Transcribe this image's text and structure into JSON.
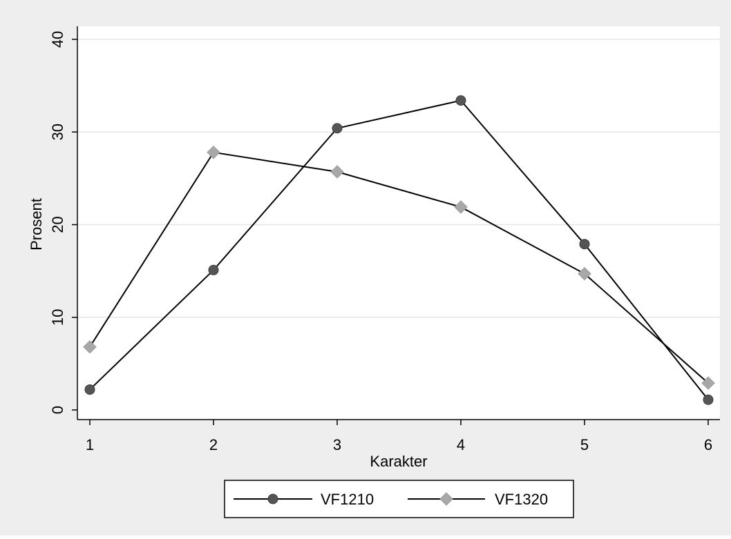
{
  "chart_data": {
    "type": "line",
    "title": "",
    "xlabel": "Karakter",
    "ylabel": "Prosent",
    "x": [
      1,
      2,
      3,
      4,
      5,
      6
    ],
    "x_tick_labels": [
      "1",
      "2",
      "3",
      "4",
      "5",
      "6"
    ],
    "ylim": [
      0,
      40
    ],
    "y_ticks": [
      0,
      10,
      20,
      30,
      40
    ],
    "y_tick_labels": [
      "0",
      "10",
      "20",
      "30",
      "40"
    ],
    "grid": true,
    "legend_position": "bottom",
    "series": [
      {
        "name": "VF1210",
        "marker": "circle",
        "color": "#555555",
        "values": [
          2.2,
          15.1,
          30.4,
          33.4,
          17.9,
          1.1
        ]
      },
      {
        "name": "VF1320",
        "marker": "diamond",
        "color": "#a8a8a8",
        "values": [
          6.8,
          27.8,
          25.7,
          21.9,
          14.7,
          2.9
        ]
      }
    ],
    "colors": {
      "outer_background": "#eeeeee",
      "plot_background": "#ffffff",
      "line": "#000000",
      "grid": "#e6e6e6"
    }
  }
}
